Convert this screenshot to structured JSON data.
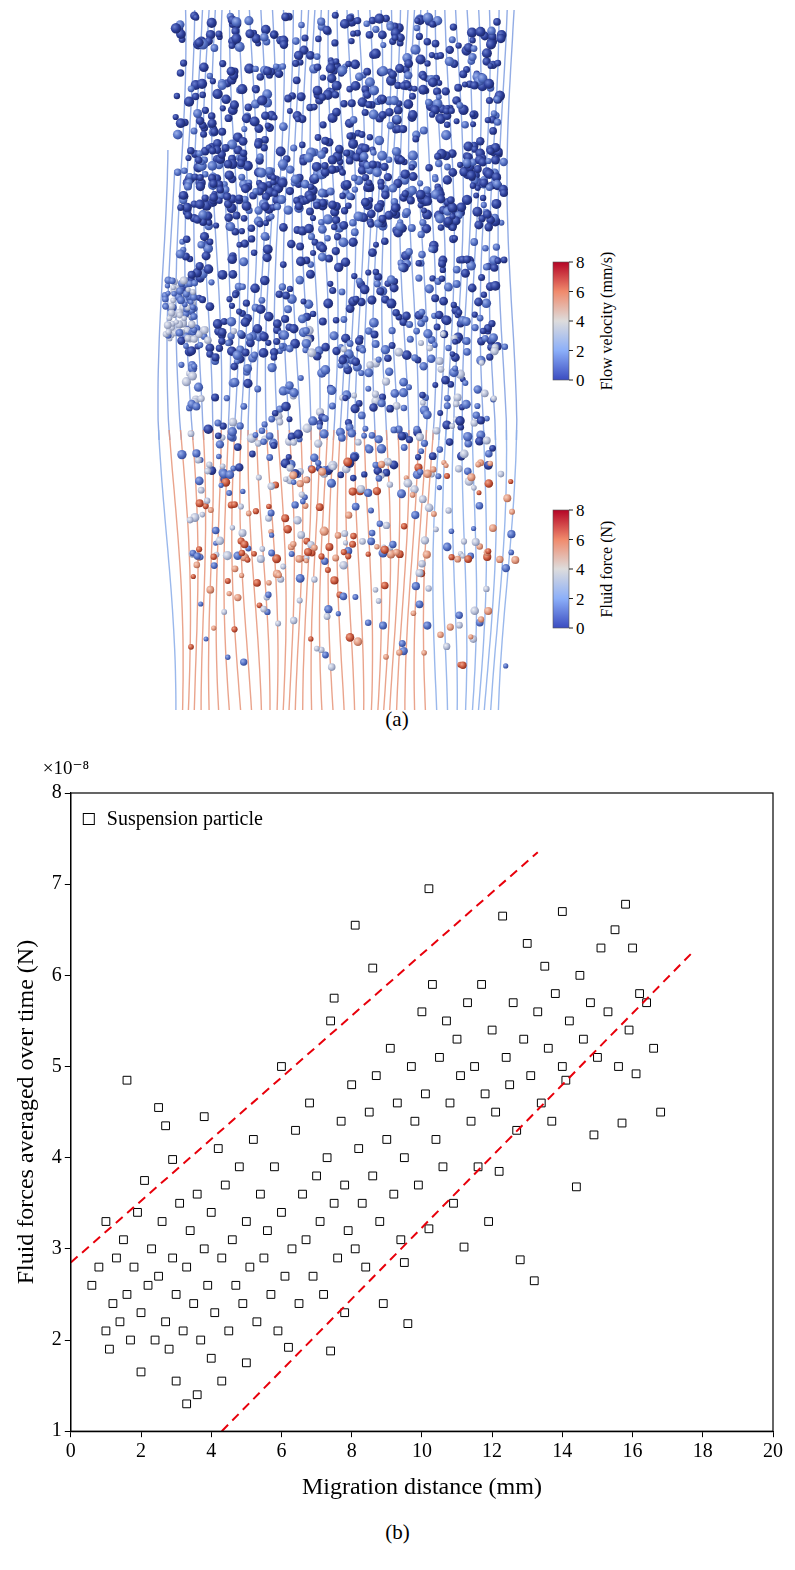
{
  "figure_a": {
    "label": "(a)",
    "colorbars": [
      {
        "title": "Flow velocity (mm/s)",
        "range": [
          0,
          8
        ],
        "ticks": [
          0,
          2,
          4,
          6,
          8
        ]
      },
      {
        "title": "Fluid force (N)",
        "range": [
          0,
          8
        ],
        "ticks": [
          0,
          2,
          4,
          6,
          8
        ]
      }
    ]
  },
  "chart_data": {
    "type": "scatter",
    "panel_label": "(b)",
    "x_label": "Migration distance (mm)",
    "y_label": "Fluid forces averaged over time (N)",
    "annotations": [
      "×10⁻⁸"
    ],
    "xlim": [
      0,
      20
    ],
    "xticks": [
      0,
      2,
      4,
      6,
      8,
      10,
      12,
      14,
      16,
      18,
      20
    ],
    "ylim": [
      1,
      8
    ],
    "yticks": [
      1,
      2,
      3,
      4,
      5,
      6,
      7,
      8
    ],
    "grid": false,
    "legend": "upper left",
    "series": [
      {
        "name": "Suspension particle",
        "type": "scatter",
        "marker": "open_square",
        "color": "#000000",
        "x": [
          0.6,
          0.8,
          1.0,
          1.0,
          1.1,
          1.2,
          1.3,
          1.4,
          1.5,
          1.6,
          1.6,
          1.7,
          1.8,
          1.9,
          2.0,
          2.0,
          2.1,
          2.2,
          2.3,
          2.4,
          2.5,
          2.5,
          2.6,
          2.7,
          2.7,
          2.8,
          2.9,
          2.9,
          3.0,
          3.0,
          3.1,
          3.2,
          3.3,
          3.3,
          3.4,
          3.5,
          3.6,
          3.6,
          3.7,
          3.8,
          3.8,
          3.9,
          4.0,
          4.0,
          4.1,
          4.2,
          4.3,
          4.3,
          4.4,
          4.5,
          4.6,
          4.7,
          4.8,
          4.9,
          5.0,
          5.0,
          5.1,
          5.2,
          5.3,
          5.4,
          5.5,
          5.6,
          5.7,
          5.8,
          5.9,
          6.0,
          6.0,
          6.1,
          6.2,
          6.3,
          6.4,
          6.5,
          6.6,
          6.7,
          6.8,
          6.9,
          7.0,
          7.1,
          7.2,
          7.3,
          7.4,
          7.4,
          7.5,
          7.5,
          7.6,
          7.7,
          7.8,
          7.8,
          7.9,
          8.0,
          8.1,
          8.1,
          8.2,
          8.3,
          8.4,
          8.5,
          8.6,
          8.6,
          8.7,
          8.8,
          8.9,
          9.0,
          9.1,
          9.2,
          9.3,
          9.4,
          9.5,
          9.5,
          9.6,
          9.7,
          9.8,
          9.9,
          10.0,
          10.1,
          10.2,
          10.2,
          10.3,
          10.4,
          10.5,
          10.6,
          10.7,
          10.8,
          10.9,
          11.0,
          11.1,
          11.2,
          11.3,
          11.4,
          11.5,
          11.6,
          11.7,
          11.8,
          11.9,
          12.0,
          12.1,
          12.2,
          12.3,
          12.4,
          12.5,
          12.6,
          12.7,
          12.8,
          12.9,
          13.0,
          13.1,
          13.2,
          13.3,
          13.4,
          13.5,
          13.6,
          13.7,
          13.8,
          14.0,
          14.0,
          14.1,
          14.2,
          14.4,
          14.5,
          14.6,
          14.8,
          14.9,
          15.0,
          15.1,
          15.3,
          15.5,
          15.6,
          15.7,
          15.8,
          15.9,
          16.0,
          16.1,
          16.2,
          16.4,
          16.6,
          16.8
        ],
        "values": [
          2.6,
          2.8,
          2.1,
          3.3,
          1.9,
          2.4,
          2.9,
          2.2,
          3.1,
          4.85,
          2.5,
          2.0,
          2.8,
          3.4,
          1.65,
          2.3,
          3.75,
          2.6,
          3.0,
          2.0,
          4.55,
          2.7,
          3.3,
          4.35,
          2.2,
          1.9,
          3.98,
          2.9,
          2.5,
          1.55,
          3.5,
          2.1,
          1.3,
          2.8,
          3.2,
          2.4,
          1.4,
          3.6,
          2.0,
          4.45,
          3.0,
          2.6,
          1.8,
          3.4,
          2.3,
          4.1,
          1.55,
          2.9,
          3.7,
          2.1,
          3.1,
          2.6,
          3.9,
          2.4,
          1.75,
          3.3,
          2.8,
          4.2,
          2.2,
          3.6,
          2.9,
          3.2,
          2.5,
          3.9,
          2.1,
          5.0,
          3.4,
          2.7,
          1.92,
          3.0,
          4.3,
          2.4,
          3.6,
          3.1,
          4.6,
          2.7,
          3.8,
          3.3,
          2.5,
          4.0,
          5.5,
          1.88,
          5.75,
          3.5,
          2.9,
          4.4,
          2.3,
          3.7,
          3.2,
          4.8,
          6.55,
          3.0,
          4.1,
          3.5,
          2.8,
          4.5,
          6.08,
          3.8,
          4.9,
          3.3,
          2.4,
          4.2,
          5.2,
          3.6,
          4.6,
          3.1,
          2.85,
          4.0,
          2.18,
          5.0,
          4.4,
          3.7,
          5.6,
          4.7,
          6.95,
          3.22,
          5.9,
          4.2,
          5.1,
          3.9,
          5.5,
          4.6,
          3.5,
          5.3,
          4.9,
          3.02,
          5.7,
          4.4,
          5.0,
          3.9,
          5.9,
          4.7,
          3.3,
          5.4,
          4.5,
          3.85,
          6.65,
          5.1,
          4.8,
          5.7,
          4.3,
          2.88,
          5.3,
          6.35,
          4.9,
          2.65,
          5.6,
          4.6,
          6.1,
          5.2,
          4.4,
          5.8,
          6.7,
          5.0,
          4.85,
          5.5,
          3.68,
          6.0,
          5.3,
          5.7,
          4.25,
          5.1,
          6.3,
          5.6,
          6.5,
          5.0,
          4.38,
          6.78,
          5.4,
          6.3,
          4.92,
          5.8,
          5.7,
          5.2,
          4.5
        ]
      },
      {
        "type": "line",
        "line_style": "dashed",
        "color": "#e8000b",
        "x": [
          0,
          13.3
        ],
        "values": [
          2.85,
          7.35
        ]
      },
      {
        "type": "line",
        "line_style": "dashed",
        "color": "#e8000b",
        "x": [
          4.3,
          17.7
        ],
        "values": [
          1.0,
          6.25
        ]
      }
    ]
  }
}
